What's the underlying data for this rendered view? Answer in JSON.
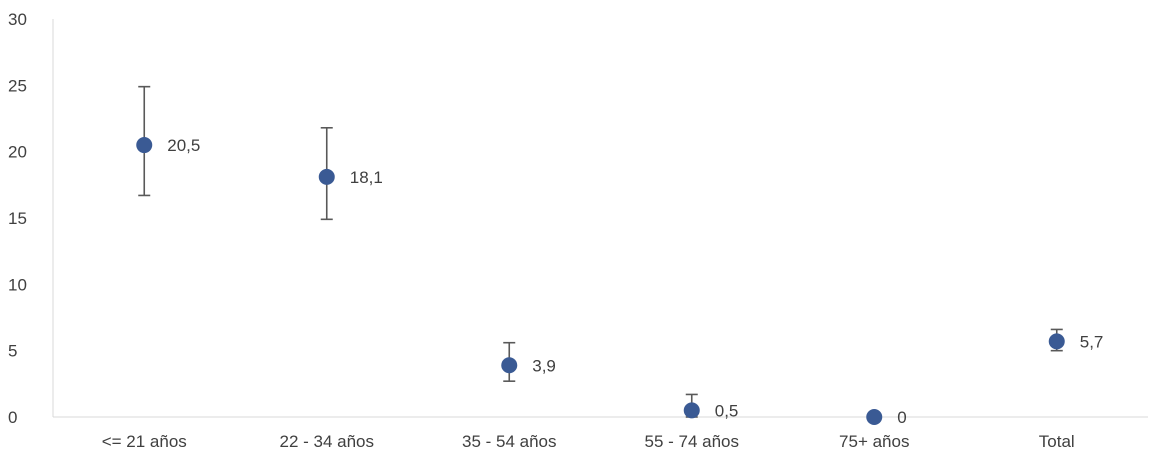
{
  "chart_data": {
    "type": "scatter",
    "title": "",
    "xlabel": "",
    "ylabel": "",
    "categories": [
      "<= 21 años",
      "22 - 34 años",
      "35 - 54 años",
      "55 - 74 años",
      "75+ años",
      "Total"
    ],
    "series": [
      {
        "values": [
          20.5,
          18.1,
          3.9,
          0.5,
          0,
          5.7
        ],
        "error_low": [
          16.7,
          14.9,
          2.7,
          0.0,
          0.0,
          5.0
        ],
        "error_high": [
          24.9,
          21.8,
          5.6,
          1.7,
          0.0,
          6.6
        ],
        "data_labels": [
          "20,5",
          "18,1",
          "3,9",
          "0,5",
          "0",
          "5,7"
        ]
      }
    ],
    "ylim": [
      0,
      30
    ],
    "yticks": [
      0,
      5,
      10,
      15,
      20,
      25,
      30
    ],
    "grid": false,
    "legend": "none",
    "colors": {
      "marker": "#3A5A94",
      "error_bar": "#595959",
      "axis": "#D9D9D9",
      "text": "#404040"
    }
  }
}
